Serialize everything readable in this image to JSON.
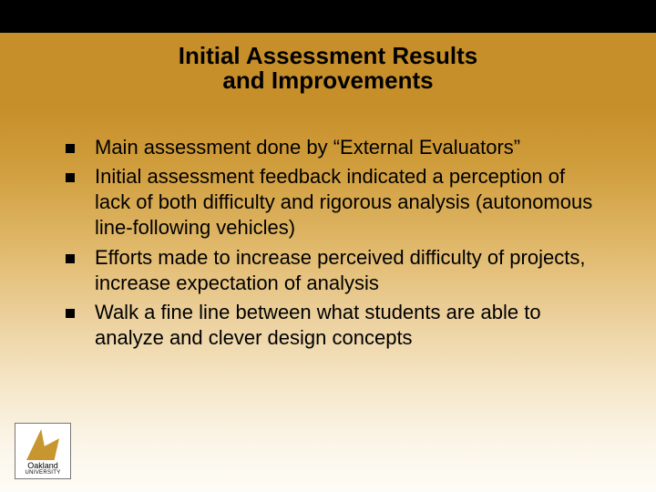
{
  "colors": {
    "top_stripe": "#000000",
    "gradient_top": "#c78f2a",
    "gradient_bottom": "#fefcf6",
    "title_color": "#000000",
    "body_color": "#000000",
    "bullet_marker": "#000000",
    "logo_border": "#777777",
    "logo_bg": "#ffffff",
    "logo_sail": "#c8962e"
  },
  "typography": {
    "title_fontsize": 26,
    "title_weight": "bold",
    "body_fontsize": 22,
    "font_family": "Arial"
  },
  "title": {
    "line1": "Initial Assessment Results",
    "line2": "and Improvements"
  },
  "bullets": [
    "Main assessment done by “External Evaluators”",
    "Initial assessment feedback indicated a perception of lack of both difficulty and rigorous analysis (autonomous line-following vehicles)",
    "Efforts made to increase perceived difficulty of projects, increase expectation of analysis",
    "Walk a fine line between what students are able to analyze and clever design concepts"
  ],
  "logo": {
    "line1": "Oakland",
    "line2": "UNIVERSITY"
  }
}
